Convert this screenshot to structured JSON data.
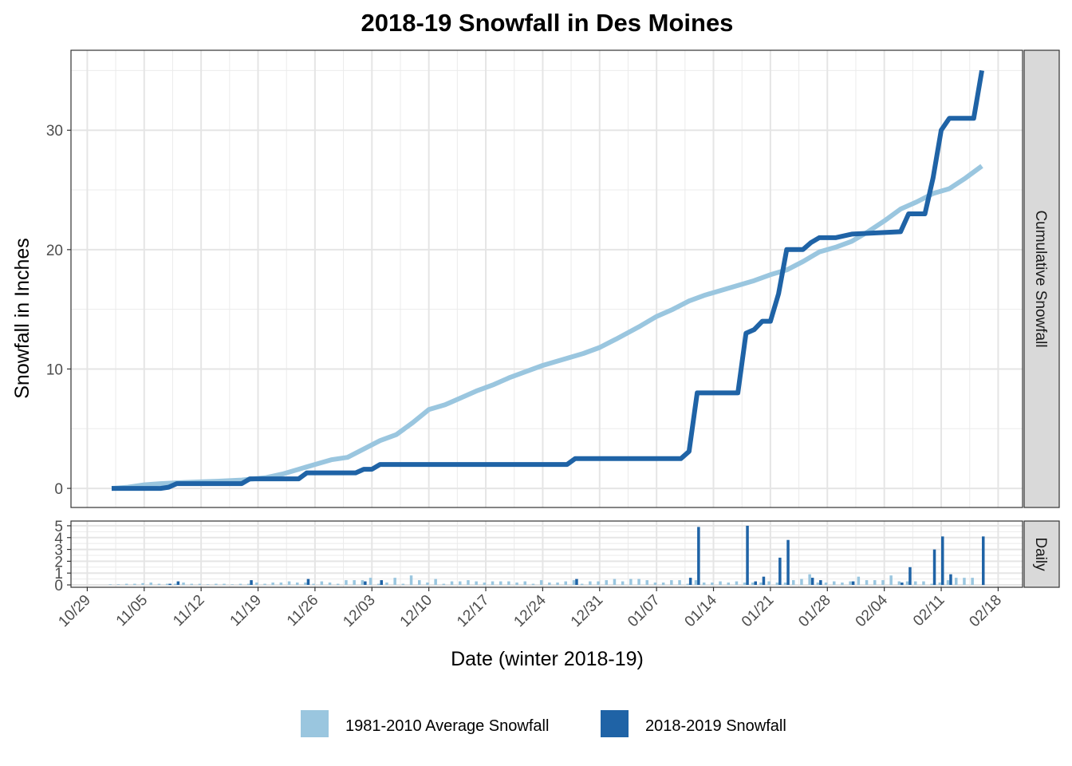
{
  "chart_data": {
    "type": "line",
    "title": "2018-19 Snowfall in Des Moines",
    "xlabel": "Date (winter 2018-19)",
    "ylabel": "Snowfall in Inches",
    "x_ticks": [
      "10/29",
      "11/05",
      "11/12",
      "11/19",
      "11/26",
      "12/03",
      "12/10",
      "12/17",
      "12/24",
      "12/31",
      "01/07",
      "01/14",
      "01/21",
      "01/28",
      "02/04",
      "02/11",
      "02/18"
    ],
    "xlim": [
      "2018-10-27",
      "2019-02-21"
    ],
    "grid": true,
    "legend_position": "bottom",
    "colors": {
      "average": "#9ac6df",
      "current": "#1f63a6"
    },
    "legend": [
      "1981-2010 Average Snowfall",
      "2018-2019 Snowfall"
    ],
    "panels": [
      {
        "strip": "Cumulative Snowfall",
        "type": "line",
        "ylim": [
          -1.6,
          36.7
        ],
        "y_ticks": [
          0,
          10,
          20,
          30
        ],
        "series": [
          {
            "name": "1981-2010 Average Snowfall",
            "points": [
              [
                "2018-11-01",
                0.0
              ],
              [
                "2018-11-03",
                0.1
              ],
              [
                "2018-11-05",
                0.3
              ],
              [
                "2018-11-07",
                0.4
              ],
              [
                "2018-11-10",
                0.5
              ],
              [
                "2018-11-14",
                0.6
              ],
              [
                "2018-11-17",
                0.7
              ],
              [
                "2018-11-20",
                0.9
              ],
              [
                "2018-11-22",
                1.2
              ],
              [
                "2018-11-24",
                1.6
              ],
              [
                "2018-11-26",
                2.0
              ],
              [
                "2018-11-28",
                2.4
              ],
              [
                "2018-11-30",
                2.6
              ],
              [
                "2018-12-02",
                3.3
              ],
              [
                "2018-12-04",
                4.0
              ],
              [
                "2018-12-06",
                4.5
              ],
              [
                "2018-12-08",
                5.5
              ],
              [
                "2018-12-10",
                6.6
              ],
              [
                "2018-12-12",
                7.0
              ],
              [
                "2018-12-14",
                7.6
              ],
              [
                "2018-12-16",
                8.2
              ],
              [
                "2018-12-18",
                8.7
              ],
              [
                "2018-12-20",
                9.3
              ],
              [
                "2018-12-22",
                9.8
              ],
              [
                "2018-12-24",
                10.3
              ],
              [
                "2018-12-27",
                10.9
              ],
              [
                "2018-12-29",
                11.3
              ],
              [
                "2018-12-31",
                11.8
              ],
              [
                "2019-01-02",
                12.5
              ],
              [
                "2019-01-05",
                13.6
              ],
              [
                "2019-01-07",
                14.4
              ],
              [
                "2019-01-09",
                15.0
              ],
              [
                "2019-01-11",
                15.7
              ],
              [
                "2019-01-13",
                16.2
              ],
              [
                "2019-01-16",
                16.8
              ],
              [
                "2019-01-19",
                17.4
              ],
              [
                "2019-01-21",
                17.9
              ],
              [
                "2019-01-23",
                18.3
              ],
              [
                "2019-01-25",
                19.0
              ],
              [
                "2019-01-27",
                19.8
              ],
              [
                "2019-01-29",
                20.2
              ],
              [
                "2019-01-31",
                20.7
              ],
              [
                "2019-02-02",
                21.5
              ],
              [
                "2019-02-04",
                22.4
              ],
              [
                "2019-02-06",
                23.4
              ],
              [
                "2019-02-08",
                24.0
              ],
              [
                "2019-02-10",
                24.7
              ],
              [
                "2019-02-12",
                25.1
              ],
              [
                "2019-02-14",
                26.0
              ],
              [
                "2019-02-16",
                27.0
              ]
            ]
          },
          {
            "name": "2018-2019 Snowfall",
            "points": [
              [
                "2018-11-01",
                0.0
              ],
              [
                "2018-11-07",
                0.0
              ],
              [
                "2018-11-08",
                0.1
              ],
              [
                "2018-11-09",
                0.4
              ],
              [
                "2018-11-17",
                0.4
              ],
              [
                "2018-11-18",
                0.8
              ],
              [
                "2018-11-24",
                0.8
              ],
              [
                "2018-11-25",
                1.3
              ],
              [
                "2018-12-01",
                1.3
              ],
              [
                "2018-12-02",
                1.6
              ],
              [
                "2018-12-03",
                1.6
              ],
              [
                "2018-12-04",
                2.0
              ],
              [
                "2018-12-27",
                2.0
              ],
              [
                "2018-12-28",
                2.5
              ],
              [
                "2019-01-10",
                2.5
              ],
              [
                "2019-01-11",
                3.1
              ],
              [
                "2019-01-12",
                8.0
              ],
              [
                "2019-01-17",
                8.0
              ],
              [
                "2019-01-18",
                13.0
              ],
              [
                "2019-01-19",
                13.3
              ],
              [
                "2019-01-20",
                14.0
              ],
              [
                "2019-01-21",
                14.0
              ],
              [
                "2019-01-22",
                16.3
              ],
              [
                "2019-01-23",
                20.0
              ],
              [
                "2019-01-25",
                20.0
              ],
              [
                "2019-01-26",
                20.6
              ],
              [
                "2019-01-27",
                21.0
              ],
              [
                "2019-01-29",
                21.0
              ],
              [
                "2019-01-31",
                21.3
              ],
              [
                "2019-02-06",
                21.5
              ],
              [
                "2019-02-07",
                23.0
              ],
              [
                "2019-02-09",
                23.0
              ],
              [
                "2019-02-10",
                26.0
              ],
              [
                "2019-02-11",
                30.0
              ],
              [
                "2019-02-12",
                31.0
              ],
              [
                "2019-02-15",
                31.0
              ],
              [
                "2019-02-16",
                35.0
              ]
            ]
          }
        ]
      },
      {
        "strip": "Daily",
        "type": "bar",
        "ylim": [
          -0.2,
          5.4
        ],
        "y_ticks": [
          0,
          1,
          2,
          3,
          4,
          5
        ],
        "series": [
          {
            "name": "1981-2010 Average Snowfall",
            "points": [
              [
                "2018-11-01",
                0.05
              ],
              [
                "2018-11-02",
                0.05
              ],
              [
                "2018-11-03",
                0.1
              ],
              [
                "2018-11-04",
                0.1
              ],
              [
                "2018-11-05",
                0.15
              ],
              [
                "2018-11-06",
                0.2
              ],
              [
                "2018-11-07",
                0.1
              ],
              [
                "2018-11-08",
                0.1
              ],
              [
                "2018-11-09",
                0.1
              ],
              [
                "2018-11-10",
                0.2
              ],
              [
                "2018-11-11",
                0.1
              ],
              [
                "2018-11-12",
                0.1
              ],
              [
                "2018-11-13",
                0.05
              ],
              [
                "2018-11-14",
                0.1
              ],
              [
                "2018-11-15",
                0.1
              ],
              [
                "2018-11-16",
                0.05
              ],
              [
                "2018-11-17",
                0.1
              ],
              [
                "2018-11-18",
                0.1
              ],
              [
                "2018-11-19",
                0.2
              ],
              [
                "2018-11-20",
                0.1
              ],
              [
                "2018-11-21",
                0.2
              ],
              [
                "2018-11-22",
                0.2
              ],
              [
                "2018-11-23",
                0.3
              ],
              [
                "2018-11-24",
                0.2
              ],
              [
                "2018-11-25",
                0.2
              ],
              [
                "2018-11-26",
                0.1
              ],
              [
                "2018-11-27",
                0.3
              ],
              [
                "2018-11-28",
                0.2
              ],
              [
                "2018-11-29",
                0.1
              ],
              [
                "2018-11-30",
                0.4
              ],
              [
                "2018-12-01",
                0.4
              ],
              [
                "2018-12-02",
                0.4
              ],
              [
                "2018-12-03",
                0.6
              ],
              [
                "2018-12-04",
                0.1
              ],
              [
                "2018-12-05",
                0.2
              ],
              [
                "2018-12-06",
                0.6
              ],
              [
                "2018-12-07",
                0.1
              ],
              [
                "2018-12-08",
                0.8
              ],
              [
                "2018-12-09",
                0.4
              ],
              [
                "2018-12-10",
                0.2
              ],
              [
                "2018-12-11",
                0.5
              ],
              [
                "2018-12-12",
                0.1
              ],
              [
                "2018-12-13",
                0.3
              ],
              [
                "2018-12-14",
                0.3
              ],
              [
                "2018-12-15",
                0.4
              ],
              [
                "2018-12-16",
                0.3
              ],
              [
                "2018-12-17",
                0.2
              ],
              [
                "2018-12-18",
                0.3
              ],
              [
                "2018-12-19",
                0.3
              ],
              [
                "2018-12-20",
                0.3
              ],
              [
                "2018-12-21",
                0.2
              ],
              [
                "2018-12-22",
                0.3
              ],
              [
                "2018-12-23",
                0.1
              ],
              [
                "2018-12-24",
                0.4
              ],
              [
                "2018-12-25",
                0.2
              ],
              [
                "2018-12-26",
                0.2
              ],
              [
                "2018-12-27",
                0.3
              ],
              [
                "2018-12-28",
                0.4
              ],
              [
                "2018-12-29",
                0.1
              ],
              [
                "2018-12-30",
                0.3
              ],
              [
                "2018-12-31",
                0.3
              ],
              [
                "2019-01-01",
                0.4
              ],
              [
                "2019-01-02",
                0.5
              ],
              [
                "2019-01-03",
                0.3
              ],
              [
                "2019-01-04",
                0.5
              ],
              [
                "2019-01-05",
                0.5
              ],
              [
                "2019-01-06",
                0.4
              ],
              [
                "2019-01-07",
                0.2
              ],
              [
                "2019-01-08",
                0.2
              ],
              [
                "2019-01-09",
                0.4
              ],
              [
                "2019-01-10",
                0.4
              ],
              [
                "2019-01-11",
                0.1
              ],
              [
                "2019-01-12",
                0.4
              ],
              [
                "2019-01-13",
                0.2
              ],
              [
                "2019-01-14",
                0.2
              ],
              [
                "2019-01-15",
                0.3
              ],
              [
                "2019-01-16",
                0.2
              ],
              [
                "2019-01-17",
                0.3
              ],
              [
                "2019-01-18",
                0.2
              ],
              [
                "2019-01-19",
                0.2
              ],
              [
                "2019-01-20",
                0.2
              ],
              [
                "2019-01-21",
                0.3
              ],
              [
                "2019-01-22",
                0.2
              ],
              [
                "2019-01-23",
                0.2
              ],
              [
                "2019-01-24",
                0.4
              ],
              [
                "2019-01-25",
                0.5
              ],
              [
                "2019-01-26",
                0.9
              ],
              [
                "2019-01-27",
                0.2
              ],
              [
                "2019-01-28",
                0.2
              ],
              [
                "2019-01-29",
                0.3
              ],
              [
                "2019-01-30",
                0.2
              ],
              [
                "2019-01-31",
                0.3
              ],
              [
                "2019-02-01",
                0.7
              ],
              [
                "2019-02-02",
                0.4
              ],
              [
                "2019-02-03",
                0.4
              ],
              [
                "2019-02-04",
                0.4
              ],
              [
                "2019-02-05",
                0.8
              ],
              [
                "2019-02-06",
                0.3
              ],
              [
                "2019-02-07",
                0.3
              ],
              [
                "2019-02-08",
                0.3
              ],
              [
                "2019-02-09",
                0.3
              ],
              [
                "2019-02-10",
                0.1
              ],
              [
                "2019-02-11",
                0.2
              ],
              [
                "2019-02-12",
                0.4
              ],
              [
                "2019-02-13",
                0.6
              ],
              [
                "2019-02-14",
                0.6
              ],
              [
                "2019-02-15",
                0.6
              ]
            ]
          },
          {
            "name": "2018-2019 Snowfall",
            "points": [
              [
                "2018-11-08",
                0.1
              ],
              [
                "2018-11-09",
                0.3
              ],
              [
                "2018-11-18",
                0.4
              ],
              [
                "2018-11-25",
                0.5
              ],
              [
                "2018-12-02",
                0.3
              ],
              [
                "2018-12-04",
                0.4
              ],
              [
                "2018-12-28",
                0.5
              ],
              [
                "2019-01-11",
                0.6
              ],
              [
                "2019-01-12",
                4.9
              ],
              [
                "2019-01-18",
                5.0
              ],
              [
                "2019-01-19",
                0.3
              ],
              [
                "2019-01-20",
                0.7
              ],
              [
                "2019-01-22",
                2.3
              ],
              [
                "2019-01-23",
                3.8
              ],
              [
                "2019-01-26",
                0.6
              ],
              [
                "2019-01-27",
                0.4
              ],
              [
                "2019-01-31",
                0.3
              ],
              [
                "2019-02-06",
                0.2
              ],
              [
                "2019-02-07",
                1.5
              ],
              [
                "2019-02-10",
                3.0
              ],
              [
                "2019-02-11",
                4.1
              ],
              [
                "2019-02-12",
                0.9
              ],
              [
                "2019-02-16",
                4.1
              ]
            ]
          }
        ]
      }
    ]
  }
}
